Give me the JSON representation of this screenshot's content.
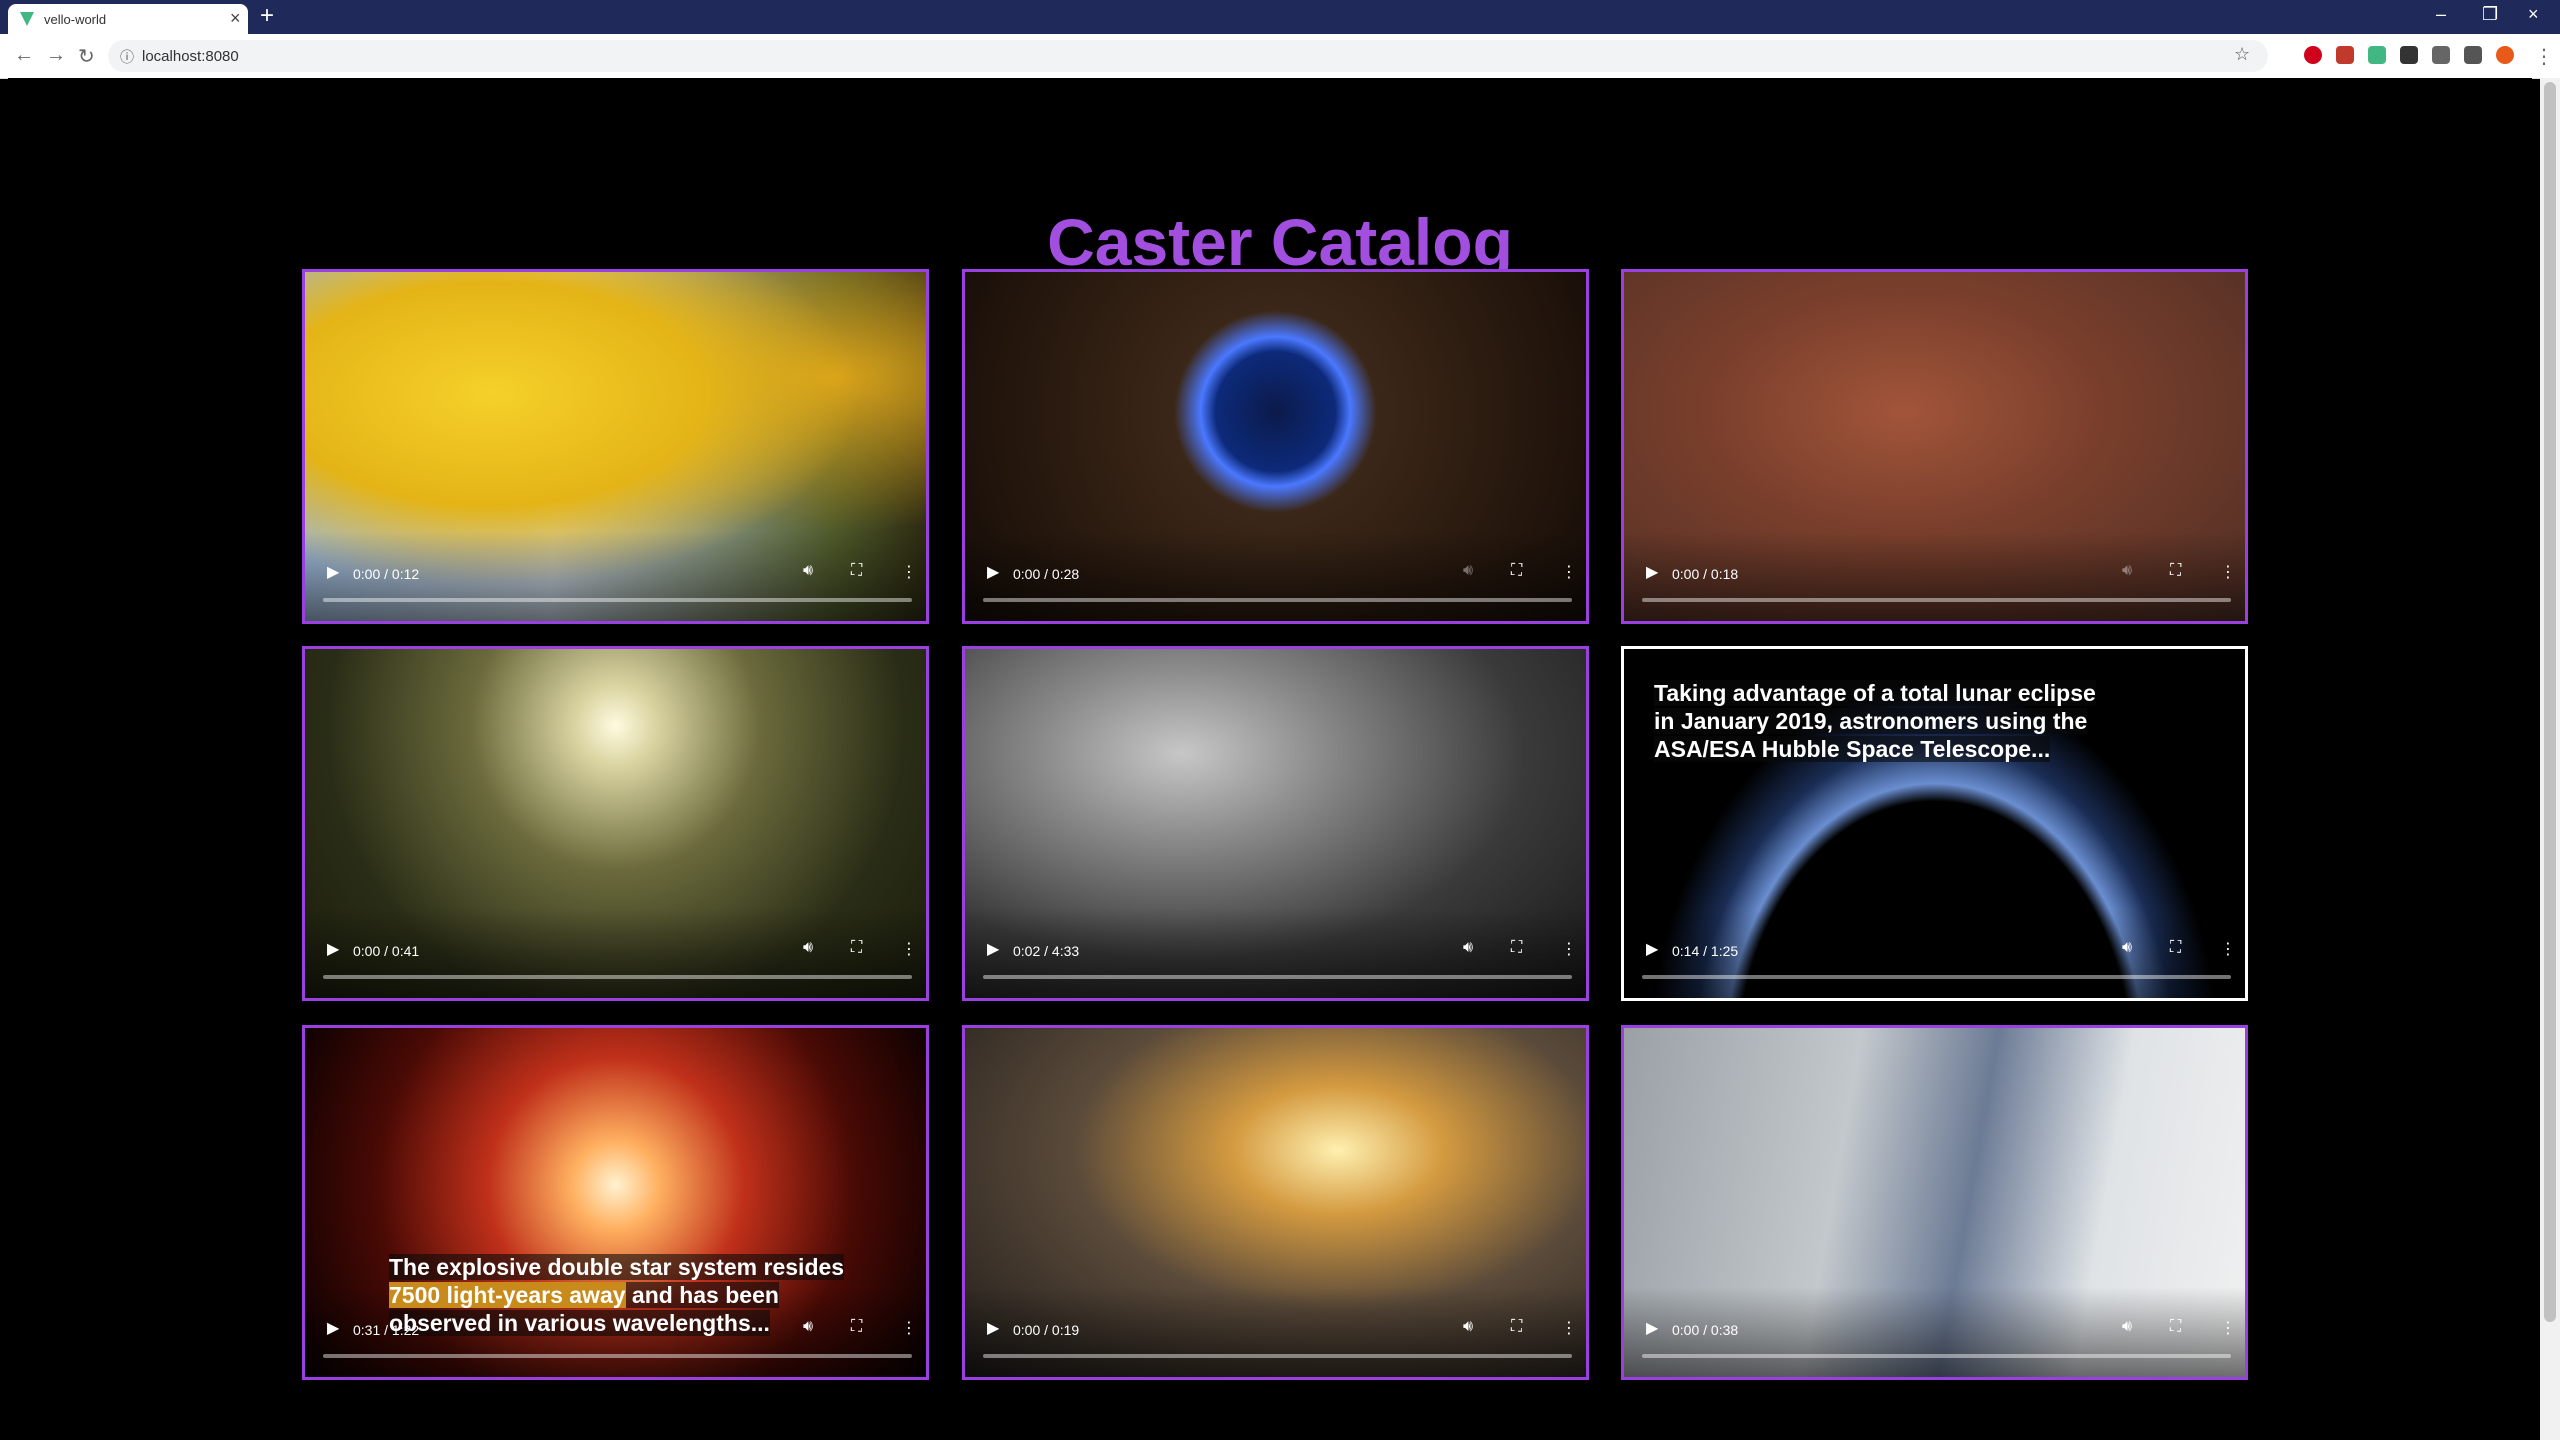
{
  "browser": {
    "tab_title": "vello-world",
    "url": "localhost:8080"
  },
  "page": {
    "title": "Caster Catalog",
    "videos": [
      {
        "time": "0:00 / 0:12"
      },
      {
        "time": "0:00 / 0:28"
      },
      {
        "time": "0:00 / 0:18"
      },
      {
        "time": "0:00 / 0:41"
      },
      {
        "time": "0:02 / 4:33"
      },
      {
        "time": "0:14 / 1:25",
        "caption": [
          [
            {
              "text": "Taking advantage of a total lunar eclipse"
            }
          ],
          [
            {
              "text": " in January 2019, astronomers using the"
            }
          ],
          [
            {
              "text": "ASA/ESA Hubble Space Telescope..."
            }
          ]
        ]
      },
      {
        "time": "0:31 / 1:22",
        "caption": [
          [
            {
              "text": "The explosive double star system resides"
            }
          ],
          [
            {
              "text": "7500 light-years away",
              "highlight": true
            },
            {
              "text": " and has been"
            }
          ],
          [
            {
              "text": "observed in various wavelengths..."
            }
          ]
        ]
      },
      {
        "time": "0:00 / 0:19"
      },
      {
        "time": "0:00 / 0:38"
      }
    ]
  }
}
